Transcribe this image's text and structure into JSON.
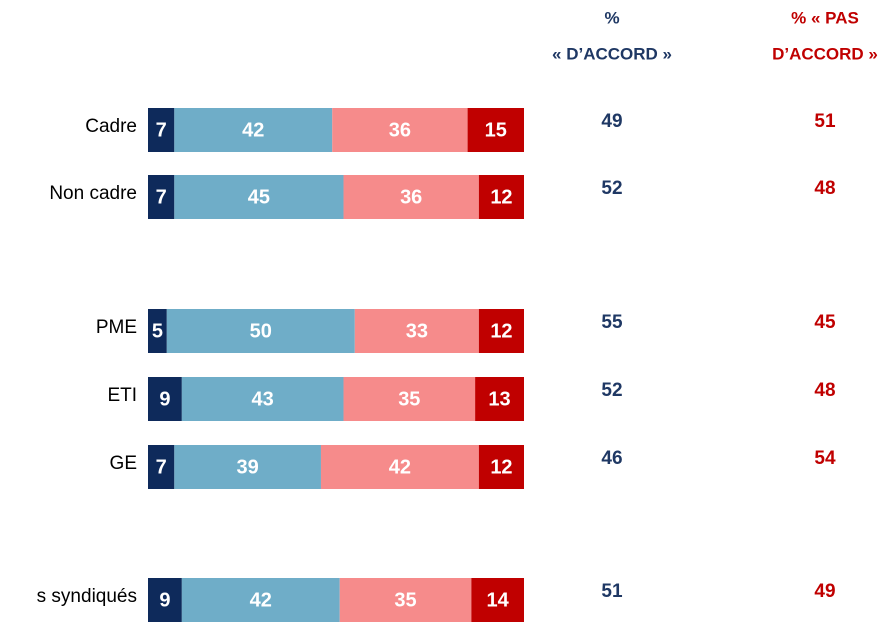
{
  "chart_data": {
    "type": "stacked-bar-horizontal",
    "categories": [
      "Cadre",
      "Non cadre",
      "PME",
      "ETI",
      "GE",
      "s syndiqués"
    ],
    "xlim": [
      0,
      100
    ],
    "series": [
      {
        "color": "#0e2a5b",
        "values": [
          7,
          7,
          5,
          9,
          7,
          9
        ]
      },
      {
        "color": "#6fadc8",
        "values": [
          42,
          45,
          50,
          43,
          39,
          42
        ]
      },
      {
        "color": "#f68b8b",
        "values": [
          36,
          36,
          33,
          35,
          42,
          35
        ]
      },
      {
        "color": "#c00000",
        "values": [
          15,
          12,
          12,
          13,
          12,
          14
        ]
      }
    ],
    "columns": [
      {
        "title": [
          "%",
          "« D’ACCORD »"
        ],
        "color": "#1f3864",
        "values": [
          49,
          52,
          55,
          52,
          46,
          51
        ]
      },
      {
        "title": [
          "% « PAS",
          "D’ACCORD »"
        ],
        "color": "#c00000",
        "values": [
          51,
          48,
          45,
          48,
          54,
          49
        ]
      }
    ]
  }
}
